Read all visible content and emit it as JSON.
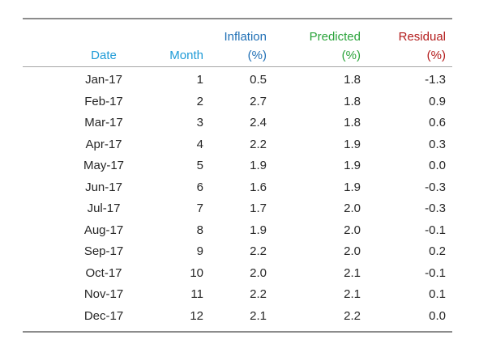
{
  "colors": {
    "date_header": "#1f9bd7",
    "month_header": "#1f9bd7",
    "inflation_header": "#1f6fb5",
    "predicted_header": "#2aa33a",
    "residual_header": "#b31b1b",
    "text": "#262626",
    "rule": "#8c8c8c"
  },
  "chart_data": {
    "type": "table",
    "columns": [
      {
        "key": "date",
        "label": [
          "",
          "Date"
        ]
      },
      {
        "key": "month",
        "label": [
          "",
          "Month"
        ]
      },
      {
        "key": "inflation",
        "label": [
          "Inflation",
          "(%)"
        ]
      },
      {
        "key": "predicted",
        "label": [
          "Predicted",
          "(%)"
        ]
      },
      {
        "key": "residual",
        "label": [
          "Residual",
          "(%)"
        ]
      }
    ],
    "rows": [
      {
        "date": "Jan-17",
        "month": "1",
        "inflation": "0.5",
        "predicted": "1.8",
        "residual": "-1.3"
      },
      {
        "date": "Feb-17",
        "month": "2",
        "inflation": "2.7",
        "predicted": "1.8",
        "residual": "0.9"
      },
      {
        "date": "Mar-17",
        "month": "3",
        "inflation": "2.4",
        "predicted": "1.8",
        "residual": "0.6"
      },
      {
        "date": "Apr-17",
        "month": "4",
        "inflation": "2.2",
        "predicted": "1.9",
        "residual": "0.3"
      },
      {
        "date": "May-17",
        "month": "5",
        "inflation": "1.9",
        "predicted": "1.9",
        "residual": "0.0"
      },
      {
        "date": "Jun-17",
        "month": "6",
        "inflation": "1.6",
        "predicted": "1.9",
        "residual": "-0.3"
      },
      {
        "date": "Jul-17",
        "month": "7",
        "inflation": "1.7",
        "predicted": "2.0",
        "residual": "-0.3"
      },
      {
        "date": "Aug-17",
        "month": "8",
        "inflation": "1.9",
        "predicted": "2.0",
        "residual": "-0.1"
      },
      {
        "date": "Sep-17",
        "month": "9",
        "inflation": "2.2",
        "predicted": "2.0",
        "residual": "0.2"
      },
      {
        "date": "Oct-17",
        "month": "10",
        "inflation": "2.0",
        "predicted": "2.1",
        "residual": "-0.1"
      },
      {
        "date": "Nov-17",
        "month": "11",
        "inflation": "2.2",
        "predicted": "2.1",
        "residual": "0.1"
      },
      {
        "date": "Dec-17",
        "month": "12",
        "inflation": "2.1",
        "predicted": "2.2",
        "residual": "0.0"
      }
    ]
  }
}
